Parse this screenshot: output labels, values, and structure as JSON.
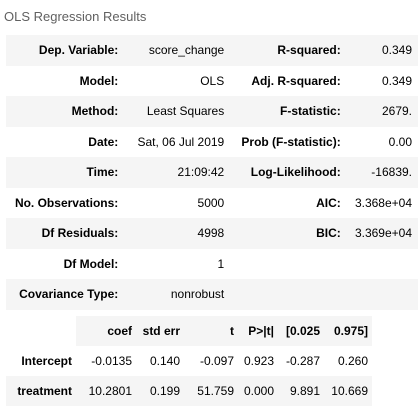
{
  "caption": "OLS Regression Results",
  "summary": [
    [
      "Dep. Variable:",
      "score_change",
      "R-squared:",
      "0.349"
    ],
    [
      "Model:",
      "OLS",
      "Adj. R-squared:",
      "0.349"
    ],
    [
      "Method:",
      "Least Squares",
      "F-statistic:",
      "2679."
    ],
    [
      "Date:",
      "Sat, 06 Jul 2019",
      "Prob (F-statistic):",
      "0.00"
    ],
    [
      "Time:",
      "21:09:42",
      "Log-Likelihood:",
      "-16839."
    ],
    [
      "No. Observations:",
      "5000",
      "AIC:",
      "3.368e+04"
    ],
    [
      "Df Residuals:",
      "4998",
      "BIC:",
      "3.369e+04"
    ],
    [
      "Df Model:",
      "1",
      "",
      ""
    ],
    [
      "Covariance Type:",
      "nonrobust",
      "",
      ""
    ]
  ],
  "coef_headers": [
    "",
    "coef",
    "std err",
    "t",
    "P>|t|",
    "[0.025",
    "0.975]"
  ],
  "coef_rows": [
    [
      "Intercept",
      "-0.0135",
      "0.140",
      "-0.097",
      "0.923",
      "-0.287",
      "0.260"
    ],
    [
      "treatment",
      "10.2801",
      "0.199",
      "51.759",
      "0.000",
      "9.891",
      "10.669"
    ]
  ]
}
